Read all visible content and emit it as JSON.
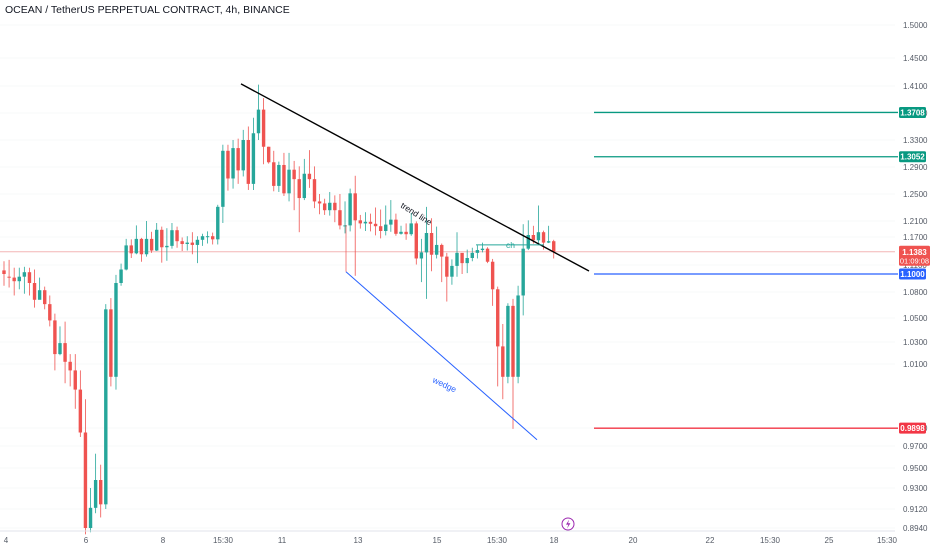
{
  "header": {
    "symbol_title": "OCEAN / TetherUS PERPETUAL CONTRACT, 4h, BINANCE"
  },
  "colors": {
    "up": "#26a69a",
    "down": "#ef5350",
    "level_green": "#089981",
    "level_blue": "#2962ff",
    "level_red": "#f23645",
    "trend": "#000000",
    "wedge": "#2962ff",
    "current_price_line": "#f4b6b6"
  },
  "chart_data": {
    "type": "candlestick",
    "title": "OCEAN / TetherUS PERPETUAL CONTRACT, 4h, BINANCE",
    "y_axis": {
      "ticks": [
        "1.5000",
        "1.4500",
        "1.4100",
        "1.3700",
        "1.3300",
        "1.2900",
        "1.2500",
        "1.2100",
        "1.1700",
        "1.1100",
        "1.0800",
        "1.0500",
        "1.0300",
        "1.0100",
        "0.9900",
        "0.9700",
        "0.9500",
        "0.9300",
        "0.9120",
        "0.8940"
      ],
      "tick_values": [
        1.5,
        1.45,
        1.41,
        1.37,
        1.33,
        1.29,
        1.25,
        1.21,
        1.17,
        1.11,
        1.08,
        1.05,
        1.03,
        1.01,
        0.99,
        0.97,
        0.95,
        0.93,
        0.912,
        0.894
      ]
    },
    "x_axis": {
      "ticks": [
        "4",
        "6",
        "8",
        "15:30",
        "11",
        "13",
        "15",
        "15:30",
        "18",
        "20",
        "22",
        "15:30",
        "25",
        "15:30"
      ]
    },
    "current_price": {
      "value": "1.1383",
      "countdown": "01:09:08",
      "y": 1.1383
    },
    "levels": [
      {
        "label": "1.3708",
        "y": 1.3708,
        "color": "#089981"
      },
      {
        "label": "1.3052",
        "y": 1.3052,
        "color": "#089981"
      },
      {
        "label": "1.1000",
        "y": 1.1,
        "color": "#2962ff"
      },
      {
        "label": "0.9898",
        "y": 0.9898,
        "color": "#f23645"
      }
    ],
    "annotations": {
      "trend_label": "trend line",
      "wedge_label": "wedge",
      "choch_label": "ch"
    },
    "candles": [
      [
        1.104,
        1.1,
        1.118,
        1.087
      ],
      [
        1.097,
        1.096,
        1.121,
        1.085
      ],
      [
        1.096,
        1.092,
        1.107,
        1.076
      ],
      [
        1.092,
        1.097,
        1.107,
        1.083
      ],
      [
        1.097,
        1.102,
        1.108,
        1.078
      ],
      [
        1.102,
        1.09,
        1.107,
        1.076
      ],
      [
        1.09,
        1.071,
        1.105,
        1.062
      ],
      [
        1.071,
        1.082,
        1.096,
        1.072
      ],
      [
        1.082,
        1.066,
        1.086,
        1.06
      ],
      [
        1.066,
        1.048,
        1.076,
        1.043
      ],
      [
        1.048,
        1.019,
        1.055,
        1.008
      ],
      [
        1.019,
        1.029,
        1.043,
        1.018
      ],
      [
        1.029,
        1.012,
        1.047,
        1.004
      ],
      [
        1.012,
        1.008,
        1.019,
        1.003
      ],
      [
        1.008,
        1.002,
        1.019,
        0.996
      ],
      [
        1.002,
        0.985,
        1.008,
        0.98
      ],
      [
        0.985,
        0.894,
        0.999,
        0.888
      ],
      [
        0.894,
        0.913,
        0.93,
        0.89
      ],
      [
        0.913,
        0.938,
        0.963,
        0.908
      ],
      [
        0.938,
        0.916,
        0.953,
        0.904
      ],
      [
        0.916,
        1.06,
        1.066,
        0.912
      ],
      [
        1.06,
        1.006,
        1.073,
        1.003
      ],
      [
        1.006,
        1.09,
        1.099,
        1.002
      ],
      [
        1.09,
        1.105,
        1.113,
        1.087
      ],
      [
        1.105,
        1.152,
        1.166,
        1.104
      ],
      [
        1.152,
        1.135,
        1.165,
        1.125
      ],
      [
        1.135,
        1.166,
        1.199,
        1.133
      ],
      [
        1.166,
        1.133,
        1.168,
        1.117
      ],
      [
        1.133,
        1.166,
        1.21,
        1.128
      ],
      [
        1.166,
        1.141,
        1.183,
        1.136
      ],
      [
        1.141,
        1.188,
        1.205,
        1.14
      ],
      [
        1.188,
        1.148,
        1.196,
        1.115
      ],
      [
        1.148,
        1.151,
        1.192,
        1.119
      ],
      [
        1.151,
        1.187,
        1.205,
        1.145
      ],
      [
        1.187,
        1.161,
        1.196,
        1.147
      ],
      [
        1.161,
        1.155,
        1.169,
        1.14
      ],
      [
        1.155,
        1.158,
        1.172,
        1.141
      ],
      [
        1.158,
        1.153,
        1.182,
        1.133
      ],
      [
        1.153,
        1.164,
        1.172,
        1.114
      ],
      [
        1.164,
        1.172,
        1.178,
        1.151
      ],
      [
        1.172,
        1.172,
        1.184,
        1.156
      ],
      [
        1.172,
        1.165,
        1.181,
        1.154
      ],
      [
        1.165,
        1.231,
        1.234,
        1.154
      ],
      [
        1.231,
        1.314,
        1.323,
        1.205
      ],
      [
        1.314,
        1.273,
        1.323,
        1.255
      ],
      [
        1.273,
        1.318,
        1.33,
        1.258
      ],
      [
        1.318,
        1.285,
        1.332,
        1.265
      ],
      [
        1.285,
        1.33,
        1.345,
        1.276
      ],
      [
        1.33,
        1.265,
        1.35,
        1.256
      ],
      [
        1.265,
        1.34,
        1.363,
        1.256
      ],
      [
        1.34,
        1.375,
        1.412,
        1.33
      ],
      [
        1.375,
        1.32,
        1.392,
        1.294
      ],
      [
        1.32,
        1.297,
        1.32,
        1.295
      ],
      [
        1.297,
        1.262,
        1.314,
        1.254
      ],
      [
        1.262,
        1.293,
        1.298,
        1.253
      ],
      [
        1.293,
        1.251,
        1.311,
        1.247
      ],
      [
        1.251,
        1.286,
        1.311,
        1.239
      ],
      [
        1.286,
        1.272,
        1.299,
        1.226
      ],
      [
        1.272,
        1.244,
        1.291,
        1.182
      ],
      [
        1.244,
        1.28,
        1.302,
        1.241
      ],
      [
        1.28,
        1.272,
        1.315,
        1.259
      ],
      [
        1.272,
        1.239,
        1.291,
        1.229
      ],
      [
        1.239,
        1.236,
        1.25,
        1.22
      ],
      [
        1.236,
        1.226,
        1.243,
        1.219
      ],
      [
        1.226,
        1.237,
        1.253,
        1.218
      ],
      [
        1.237,
        1.226,
        1.248,
        1.207
      ],
      [
        1.226,
        1.199,
        1.25,
        1.189
      ],
      [
        1.199,
        1.199,
        1.239,
        1.179
      ],
      [
        1.199,
        1.251,
        1.258,
        1.184
      ],
      [
        1.251,
        1.211,
        1.277,
        1.098
      ],
      [
        1.211,
        1.204,
        1.219,
        1.191
      ],
      [
        1.204,
        1.208,
        1.223,
        1.185
      ],
      [
        1.208,
        1.203,
        1.221,
        1.184
      ],
      [
        1.203,
        1.197,
        1.23,
        1.174
      ],
      [
        1.197,
        1.185,
        1.227,
        1.167
      ],
      [
        1.185,
        1.201,
        1.233,
        1.174
      ],
      [
        1.201,
        1.212,
        1.241,
        1.183
      ],
      [
        1.212,
        1.178,
        1.221,
        1.173
      ],
      [
        1.178,
        1.183,
        1.198,
        1.176
      ],
      [
        1.183,
        1.177,
        1.204,
        1.164
      ],
      [
        1.177,
        1.204,
        1.222,
        1.173
      ],
      [
        1.204,
        1.124,
        1.209,
        1.111
      ],
      [
        1.124,
        1.137,
        1.166,
        1.091
      ],
      [
        1.137,
        1.18,
        1.231,
        1.072
      ],
      [
        1.18,
        1.132,
        1.214,
        1.103
      ],
      [
        1.132,
        1.153,
        1.196,
        1.124
      ],
      [
        1.153,
        1.128,
        1.156,
        1.091
      ],
      [
        1.128,
        1.097,
        1.136,
        1.069
      ],
      [
        1.097,
        1.109,
        1.122,
        1.088
      ],
      [
        1.109,
        1.136,
        1.182,
        1.097
      ],
      [
        1.136,
        1.114,
        1.135,
        1.1
      ],
      [
        1.114,
        1.125,
        1.143,
        1.101
      ],
      [
        1.125,
        1.136,
        1.147,
        1.118
      ],
      [
        1.136,
        1.142,
        1.152,
        1.124
      ],
      [
        1.142,
        1.145,
        1.158,
        1.137
      ],
      [
        1.145,
        1.117,
        1.148,
        1.114
      ],
      [
        1.117,
        1.083,
        1.123,
        1.064
      ],
      [
        1.083,
        1.026,
        1.086,
        1.003
      ],
      [
        1.026,
        1.006,
        1.045,
        0.999
      ],
      [
        1.006,
        1.064,
        1.067,
        1.004
      ],
      [
        1.064,
        1.006,
        1.072,
        0.989
      ],
      [
        1.006,
        1.076,
        1.087,
        1.004
      ],
      [
        1.076,
        1.145,
        1.202,
        1.053
      ],
      [
        1.145,
        1.175,
        1.211,
        1.142
      ],
      [
        1.175,
        1.163,
        1.198,
        1.156
      ],
      [
        1.163,
        1.182,
        1.233,
        1.155
      ],
      [
        1.182,
        1.158,
        1.186,
        1.143
      ],
      [
        1.158,
        1.161,
        1.198,
        1.157
      ],
      [
        1.161,
        1.139,
        1.164,
        1.124
      ]
    ]
  }
}
